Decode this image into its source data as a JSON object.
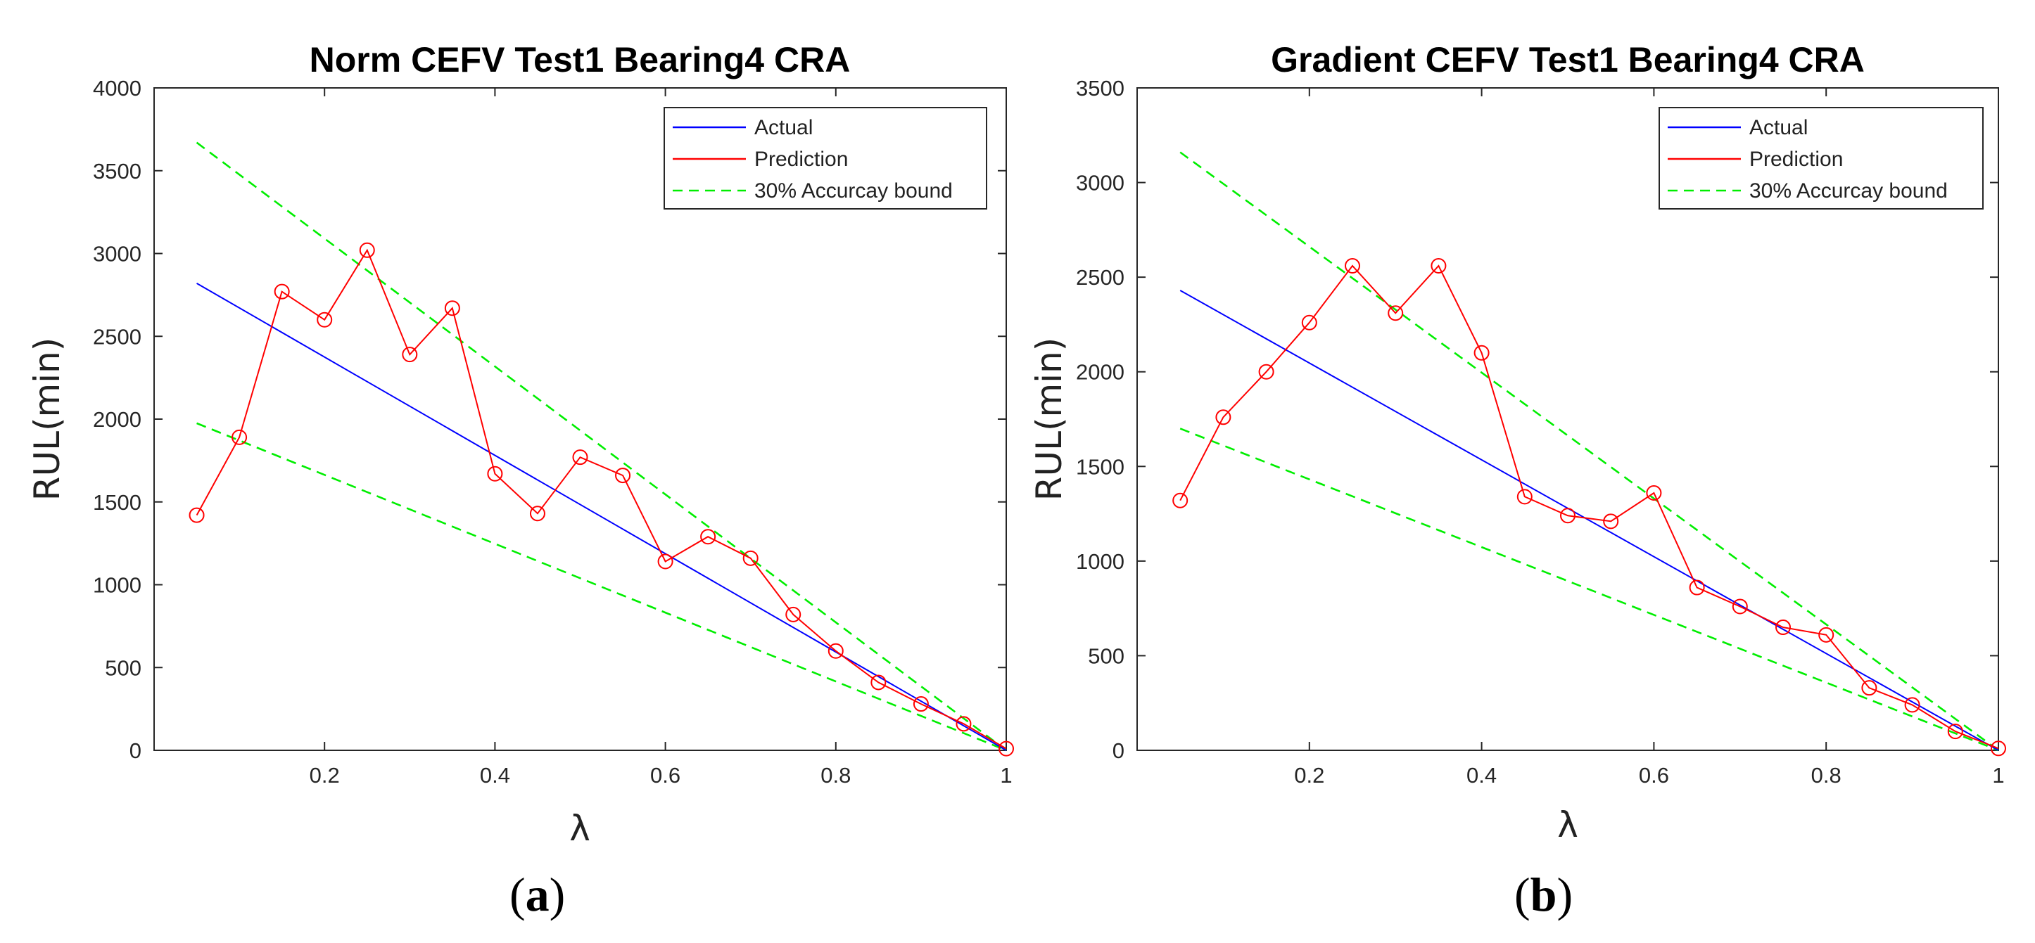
{
  "chart_data": [
    {
      "type": "line",
      "panel_label": "a",
      "title": "Norm CEFV Test1 Bearing4 CRA",
      "xlabel": "λ",
      "ylabel": "RUL(min)",
      "xlim": [
        0,
        1
      ],
      "ylim": [
        0,
        4000
      ],
      "xticks": [
        0.2,
        0.4,
        0.6,
        0.8,
        1
      ],
      "xtick_labels": [
        "0.2",
        "0.4",
        "0.6",
        "0.8",
        "1"
      ],
      "yticks": [
        0,
        500,
        1000,
        1500,
        2000,
        2500,
        3000,
        3500,
        4000
      ],
      "ytick_labels": [
        "0",
        "500",
        "1000",
        "1500",
        "2000",
        "2500",
        "3000",
        "3500",
        "4000"
      ],
      "legend_position": "top-right",
      "series": [
        {
          "name": "Actual",
          "color": "#0000ff",
          "style": "solid",
          "x": [
            0.05,
            1
          ],
          "y": [
            2820,
            0
          ]
        },
        {
          "name": "Prediction",
          "color": "#ff0000",
          "style": "solid-circle",
          "x": [
            0.05,
            0.1,
            0.15,
            0.2,
            0.25,
            0.3,
            0.35,
            0.4,
            0.45,
            0.5,
            0.55,
            0.6,
            0.65,
            0.7,
            0.75,
            0.8,
            0.85,
            0.9,
            0.95,
            1
          ],
          "y": [
            1420,
            1890,
            2770,
            2600,
            3020,
            2390,
            2670,
            1670,
            1430,
            1770,
            1660,
            1140,
            1290,
            1160,
            820,
            600,
            410,
            280,
            160,
            10
          ]
        },
        {
          "name": "30% Accurcay bound",
          "color": "#00ee00",
          "style": "dashed",
          "upper": {
            "x": [
              0.05,
              1
            ],
            "y": [
              3670,
              0
            ]
          },
          "lower": {
            "x": [
              0.05,
              1
            ],
            "y": [
              1975,
              0
            ]
          }
        }
      ]
    },
    {
      "type": "line",
      "panel_label": "b",
      "title": "Gradient CEFV Test1 Bearing4 CRA",
      "xlabel": "λ",
      "ylabel": "RUL(min)",
      "xlim": [
        0,
        1
      ],
      "ylim": [
        0,
        3500
      ],
      "xticks": [
        0.2,
        0.4,
        0.6,
        0.8,
        1
      ],
      "xtick_labels": [
        "0.2",
        "0.4",
        "0.6",
        "0.8",
        "1"
      ],
      "yticks": [
        0,
        500,
        1000,
        1500,
        2000,
        2500,
        3000,
        3500
      ],
      "ytick_labels": [
        "0",
        "500",
        "1000",
        "1500",
        "2000",
        "2500",
        "3000",
        "3500"
      ],
      "legend_position": "top-right",
      "series": [
        {
          "name": "Actual",
          "color": "#0000ff",
          "style": "solid",
          "x": [
            0.05,
            1
          ],
          "y": [
            2430,
            0
          ]
        },
        {
          "name": "Prediction",
          "color": "#ff0000",
          "style": "solid-circle",
          "x": [
            0.05,
            0.1,
            0.15,
            0.2,
            0.25,
            0.3,
            0.35,
            0.4,
            0.45,
            0.5,
            0.55,
            0.6,
            0.65,
            0.7,
            0.75,
            0.8,
            0.85,
            0.9,
            0.95,
            1
          ],
          "y": [
            1320,
            1760,
            2000,
            2260,
            2560,
            2310,
            2560,
            2100,
            1340,
            1240,
            1210,
            1360,
            860,
            760,
            650,
            610,
            330,
            240,
            100,
            10
          ]
        },
        {
          "name": "30% Accurcay bound",
          "color": "#00ee00",
          "style": "dashed",
          "upper": {
            "x": [
              0.05,
              1
            ],
            "y": [
              3160,
              0
            ]
          },
          "lower": {
            "x": [
              0.05,
              1
            ],
            "y": [
              1700,
              0
            ]
          }
        }
      ]
    }
  ]
}
